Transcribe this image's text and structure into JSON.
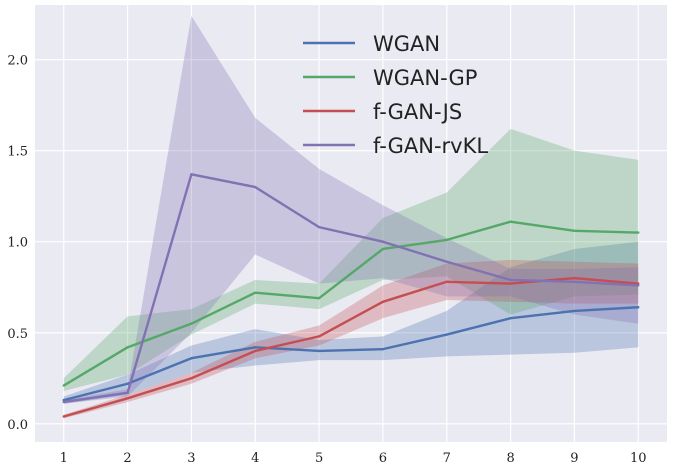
{
  "chart_data": {
    "type": "line",
    "title": "",
    "xlabel": "",
    "ylabel": "",
    "x": [
      1,
      2,
      3,
      4,
      5,
      6,
      7,
      8,
      9,
      10
    ],
    "xlim": [
      0.55,
      10.45
    ],
    "ylim": [
      -0.1,
      2.3
    ],
    "x_ticks": [
      "1",
      "2",
      "3",
      "4",
      "5",
      "6",
      "7",
      "8",
      "9",
      "10"
    ],
    "y_ticks": [
      "0.0",
      "0.5",
      "1.0",
      "1.5",
      "2.0"
    ],
    "y_tick_values": [
      0.0,
      0.5,
      1.0,
      1.5,
      2.0
    ],
    "grid": true,
    "background": "#eaeaf2",
    "legend_position": "top-center",
    "series": [
      {
        "name": "WGAN",
        "color": "#4c72b0",
        "values": [
          0.13,
          0.22,
          0.36,
          0.42,
          0.4,
          0.41,
          0.49,
          0.58,
          0.62,
          0.64
        ],
        "lower": [
          0.11,
          0.16,
          0.28,
          0.32,
          0.35,
          0.35,
          0.37,
          0.38,
          0.39,
          0.42
        ],
        "upper": [
          0.15,
          0.27,
          0.43,
          0.52,
          0.46,
          0.48,
          0.62,
          0.86,
          0.96,
          1.0
        ]
      },
      {
        "name": "WGAN-GP",
        "color": "#55a868",
        "values": [
          0.21,
          0.42,
          0.55,
          0.72,
          0.69,
          0.96,
          1.01,
          1.11,
          1.06,
          1.05
        ],
        "lower": [
          0.18,
          0.27,
          0.49,
          0.66,
          0.63,
          0.79,
          0.81,
          0.6,
          0.7,
          0.71
        ],
        "upper": [
          0.25,
          0.59,
          0.63,
          0.79,
          0.77,
          1.13,
          1.27,
          1.62,
          1.5,
          1.45
        ]
      },
      {
        "name": "f-GAN-JS",
        "color": "#c44e52",
        "values": [
          0.04,
          0.14,
          0.25,
          0.4,
          0.48,
          0.67,
          0.78,
          0.77,
          0.8,
          0.77
        ],
        "lower": [
          0.03,
          0.12,
          0.22,
          0.36,
          0.43,
          0.58,
          0.68,
          0.67,
          0.66,
          0.66
        ],
        "upper": [
          0.05,
          0.16,
          0.28,
          0.45,
          0.54,
          0.76,
          0.88,
          0.9,
          0.89,
          0.88
        ]
      },
      {
        "name": "f-GAN-rvKL",
        "color": "#8172b2",
        "values": [
          0.12,
          0.17,
          1.37,
          1.3,
          1.08,
          1.0,
          0.89,
          0.79,
          0.78,
          0.76
        ],
        "lower": [
          0.11,
          0.15,
          0.5,
          0.93,
          0.77,
          0.8,
          0.7,
          0.7,
          0.6,
          0.55
        ],
        "upper": [
          0.13,
          0.19,
          2.24,
          1.68,
          1.4,
          1.2,
          1.02,
          0.85,
          0.85,
          0.86
        ]
      }
    ]
  }
}
